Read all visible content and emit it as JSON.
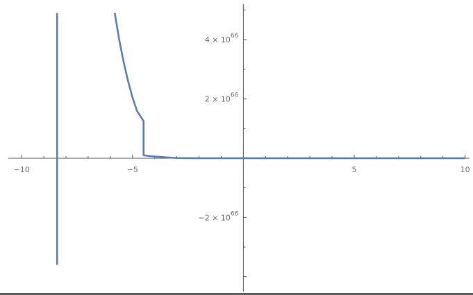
{
  "chart_data": {
    "type": "line",
    "title": "",
    "xlabel": "",
    "ylabel": "",
    "xlim": [
      -10.6,
      10.2
    ],
    "ylim": [
      -4.5e+66,
      5.2e+66
    ],
    "grid": false,
    "legend": "none",
    "colors": {
      "series": "#5b7db1",
      "axis": "#555555",
      "tick_label": "#666666",
      "baseline": "#000000"
    },
    "x_ticks": [
      {
        "value": -10,
        "label": "−10"
      },
      {
        "value": -5,
        "label": "−5"
      },
      {
        "value": 5,
        "label": "5"
      },
      {
        "value": 10,
        "label": "10"
      }
    ],
    "y_ticks": [
      {
        "value": 4e+66,
        "mantissa": "4",
        "times": "×",
        "base": "10",
        "exponent": "66"
      },
      {
        "value": 2e+66,
        "mantissa": "2",
        "times": "×",
        "base": "10",
        "exponent": "66"
      },
      {
        "value": -2e+66,
        "mantissa": "−2",
        "times": "×",
        "base": "10",
        "exponent": "66"
      }
    ],
    "series": [
      {
        "values": [
          {
            "x": -8.4,
            "y": 4.9e+66
          },
          {
            "x": -8.4,
            "y": -3.6e+66
          }
        ]
      },
      {
        "values": [
          {
            "x": -5.8,
            "y": 4.9e+66
          },
          {
            "x": -5.6,
            "y": 4e+66
          },
          {
            "x": -5.4,
            "y": 3.25e+66
          },
          {
            "x": -5.2,
            "y": 2.6e+66
          },
          {
            "x": -5.0,
            "y": 2.05e+66
          },
          {
            "x": -4.8,
            "y": 1.6e+66
          },
          {
            "x": -4.5,
            "y": 1.25e+66
          },
          {
            "x": -4.5,
            "y": 1e+65
          },
          {
            "x": -4.2,
            "y": 7e+64
          },
          {
            "x": -3.5,
            "y": 3e+64
          },
          {
            "x": -3.0,
            "y": 5e+63
          },
          {
            "x": -2.0,
            "y": 0.0
          },
          {
            "x": 0.0,
            "y": 0.0
          },
          {
            "x": 10.0,
            "y": 0.0
          }
        ]
      }
    ]
  }
}
